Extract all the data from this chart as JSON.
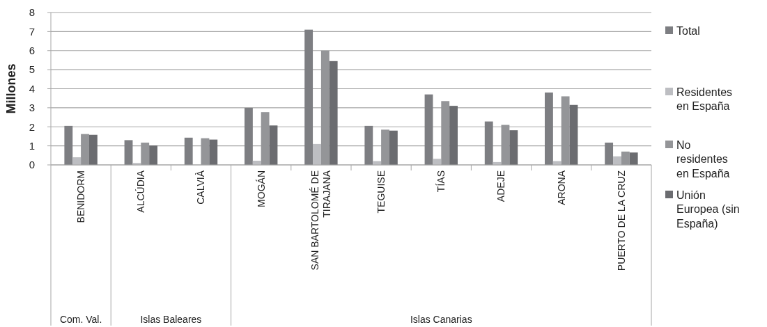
{
  "chart_data": {
    "type": "bar",
    "ylabel": "Millones",
    "categories": [
      "BENIDORM",
      "ALCÚDIA",
      "CALVIÀ",
      "MOGÁN",
      "SAN BARTOLOMÉ DE TIRAJANA",
      "TEGUISE",
      "TÍAS",
      "ADEJE",
      "ARONA",
      "PUERTO DE LA CRUZ"
    ],
    "series": [
      {
        "name": "Total",
        "color": "#7d7e82",
        "values": [
          2.05,
          1.3,
          1.43,
          3.0,
          7.1,
          2.05,
          3.7,
          2.28,
          3.8,
          1.17
        ]
      },
      {
        "name": "Residentes en España",
        "color": "#bdbec2",
        "values": [
          0.4,
          0.1,
          null,
          0.22,
          1.1,
          0.2,
          0.32,
          0.15,
          0.2,
          0.45
        ]
      },
      {
        "name": "No residentes en España",
        "color": "#949598",
        "values": [
          1.62,
          1.17,
          1.4,
          2.77,
          6.0,
          1.85,
          3.35,
          2.1,
          3.6,
          0.7
        ]
      },
      {
        "name": "Unión Europea (sin España)",
        "color": "#6b6c70",
        "values": [
          1.58,
          1.02,
          1.33,
          2.07,
          5.45,
          1.8,
          3.1,
          1.82,
          3.15,
          0.65
        ]
      }
    ],
    "annotations": [
      "Com. Val.",
      "Islas Baleares",
      "Islas Canarias"
    ],
    "ylim": [
      0,
      8
    ],
    "yticks": [
      0,
      1,
      2,
      3,
      4,
      5,
      6,
      7,
      8
    ],
    "grid": "y",
    "legend": "right"
  }
}
